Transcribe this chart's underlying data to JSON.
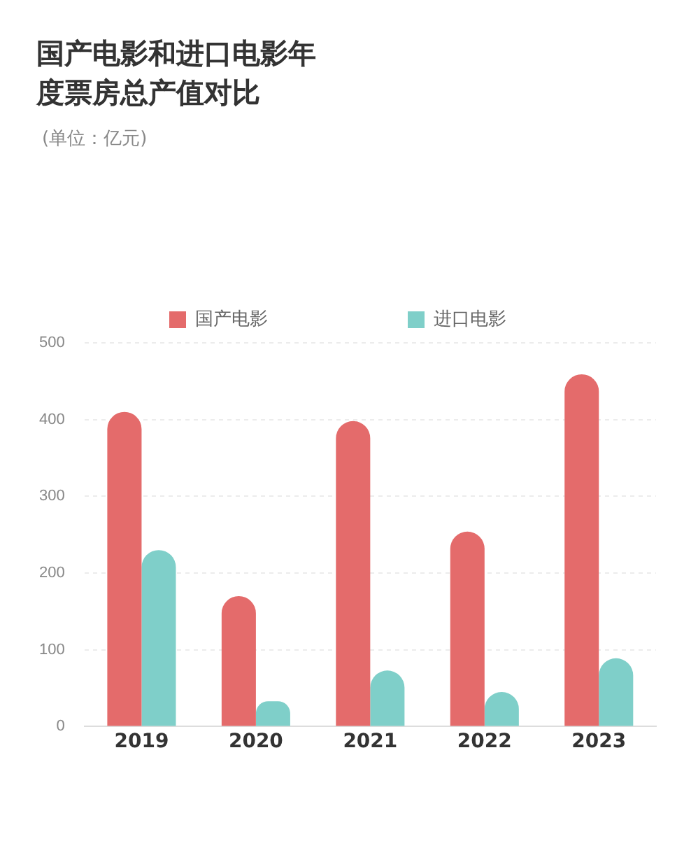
{
  "chart_data": {
    "type": "bar",
    "title": "国产电影和进口电影年度票房总产值对比",
    "subtitle": "(单位：亿元)",
    "categories": [
      "2019",
      "2020",
      "2021",
      "2022",
      "2023"
    ],
    "series": [
      {
        "name": "国产电影",
        "color": "#e46b6b",
        "values": [
          410,
          170,
          398,
          254,
          459
        ]
      },
      {
        "name": "进口电影",
        "color": "#7fcfc9",
        "values": [
          230,
          33,
          73,
          45,
          89
        ]
      }
    ],
    "ylim": [
      0,
      500
    ],
    "yticks": [
      0,
      100,
      200,
      300,
      400,
      500
    ],
    "grid": "y",
    "legend": "top"
  }
}
